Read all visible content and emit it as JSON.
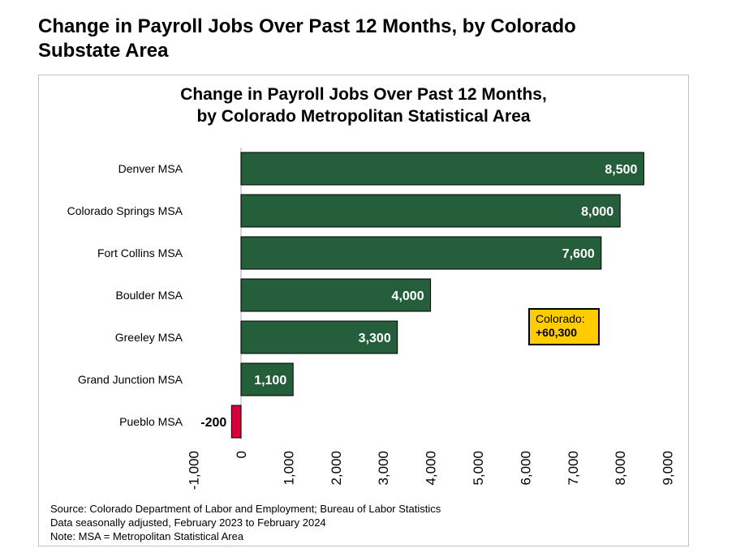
{
  "page_title": "Change in Payroll Jobs Over Past 12 Months, by Colorado Substate Area",
  "chart_data": {
    "type": "bar",
    "orientation": "horizontal",
    "title": [
      "Change in Payroll Jobs Over Past 12 Months,",
      "by Colorado Metropolitan Statistical Area"
    ],
    "categories": [
      "Denver MSA",
      "Colorado Springs MSA",
      "Fort Collins MSA",
      "Boulder MSA",
      "Greeley MSA",
      "Grand Junction MSA",
      "Pueblo MSA"
    ],
    "values": [
      8500,
      8000,
      7600,
      4000,
      3300,
      1100,
      -200
    ],
    "value_labels": [
      "8,500",
      "8,000",
      "7,600",
      "4,000",
      "3,300",
      "1,100",
      "-200"
    ],
    "xlim": [
      -1000,
      9000
    ],
    "ticks": [
      -1000,
      0,
      1000,
      2000,
      3000,
      4000,
      5000,
      6000,
      7000,
      8000,
      9000
    ],
    "tick_labels": [
      "-1,000",
      "0",
      "1,000",
      "2,000",
      "3,000",
      "4,000",
      "5,000",
      "6,000",
      "7,000",
      "8,000",
      "9,000"
    ],
    "colors": {
      "positive": "#255e3a",
      "negative": "#d6003a",
      "callout": "#ffcc00"
    },
    "annotation": {
      "line1": "Colorado:",
      "line2": "+60,300"
    }
  },
  "notes": [
    "Source: Colorado Department of Labor and Employment; Bureau of Labor Statistics",
    "Data seasonally adjusted, February 2023 to February 2024",
    "Note: MSA = Metropolitan Statistical Area"
  ]
}
